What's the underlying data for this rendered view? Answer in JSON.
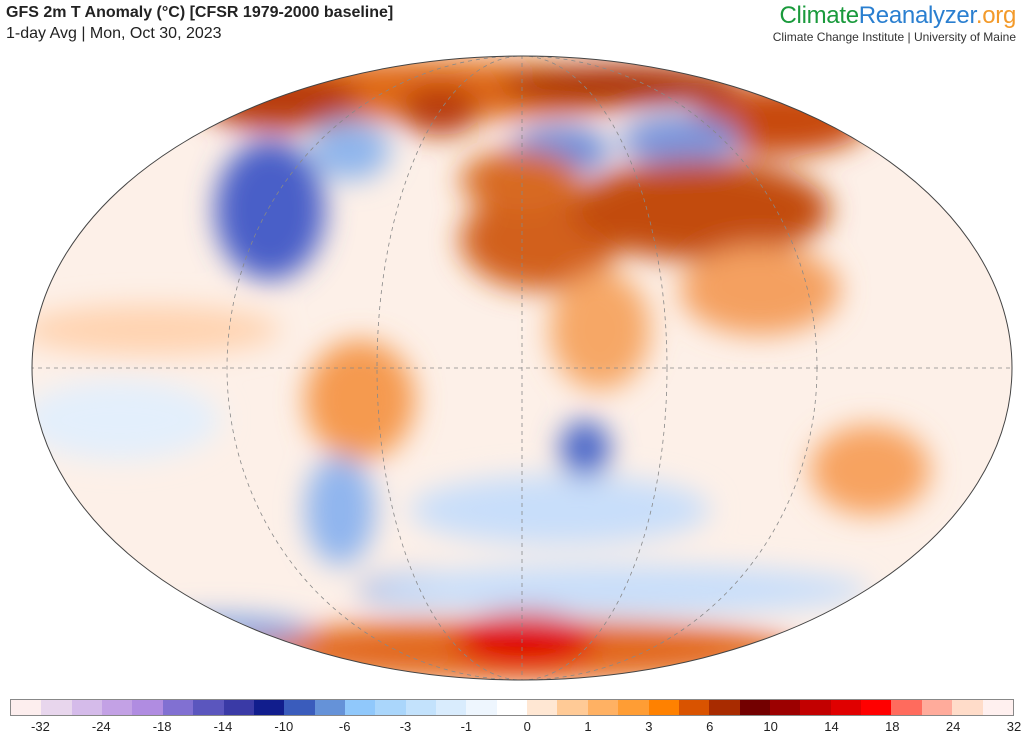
{
  "header": {
    "title": "GFS 2m T Anomaly (°C) [CFSR 1979-2000 baseline]",
    "subtitle": "1-day Avg | Mon, Oct 30, 2023"
  },
  "logo": {
    "part1": "Climate",
    "part2": "Reanalyzer",
    ".org": ".org",
    "tagline": "Climate Change Institute | University of Maine"
  },
  "colorbar": {
    "colors": [
      "#fdeeee",
      "#e8d6ed",
      "#d5bbea",
      "#c3a1e5",
      "#b08ce1",
      "#8170d2",
      "#5b56be",
      "#3a3aa6",
      "#111d8d",
      "#3a5cbc",
      "#6592d8",
      "#90c8fb",
      "#aad6fb",
      "#c3e2fc",
      "#d9ecfd",
      "#eef6fe",
      "#ffffff",
      "#ffe7d3",
      "#ffca96",
      "#ffb163",
      "#ff9d34",
      "#ff8100",
      "#d95300",
      "#a82b00",
      "#730000",
      "#9c0000",
      "#c20000",
      "#e00000",
      "#ff0000",
      "#ff6b5d",
      "#ffab9b",
      "#ffdcc9",
      "#fff0ef"
    ],
    "ticks": [
      "-32",
      "-24",
      "-18",
      "-14",
      "-10",
      "-6",
      "-3",
      "-1",
      "0",
      "1",
      "3",
      "6",
      "10",
      "14",
      "18",
      "24",
      "32"
    ]
  }
}
